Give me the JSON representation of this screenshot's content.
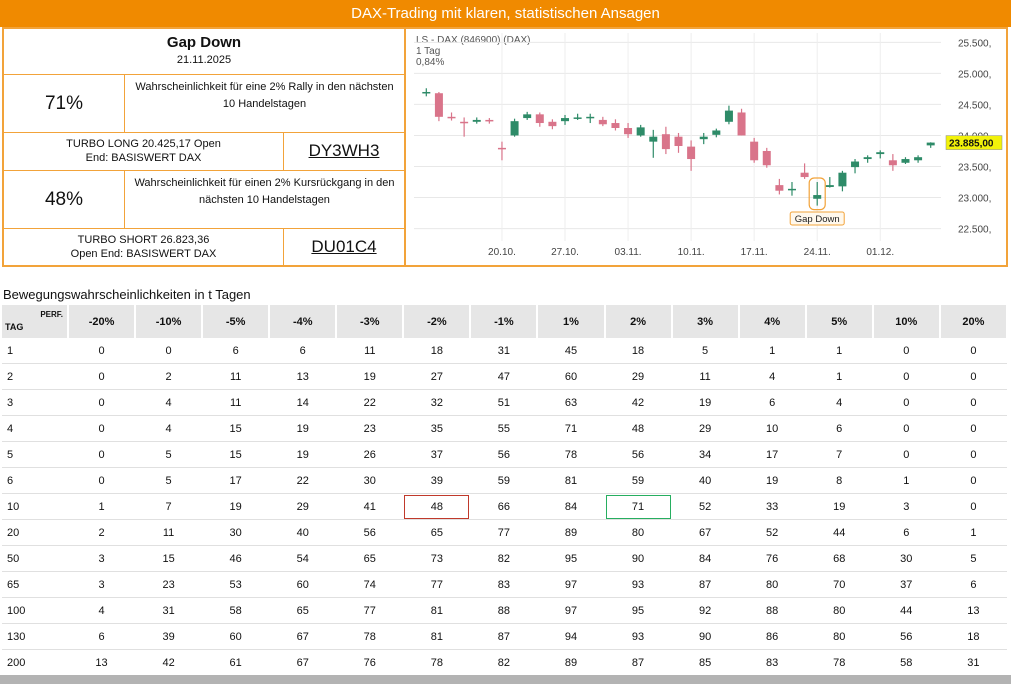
{
  "banner": {
    "title": "DAX-Trading mit klaren, statistischen Ansagen"
  },
  "setup": {
    "name": "Gap Down",
    "date": "21.11.2025",
    "long_pct": "71%",
    "long_text": "Wahrscheinlichkeit für eine 2% Rally in den nächsten 10 Handelstagen",
    "long_product": "TURBO LONG 20.425,17 Open End: BASISWERT DAX",
    "long_code": "DY3WH3",
    "short_pct": "48%",
    "short_text": "Wahrscheinlichkeit für einen 2% Kursrückgang in den nächsten 10 Handelstagen",
    "short_product": "TURBO SHORT 26.823,36 Open End: BASISWERT DAX",
    "short_code": "DU01C4"
  },
  "chart_data": {
    "type": "candlestick",
    "title": "LS - DAX (846900) (DAX)",
    "interval": "1 Tag",
    "change": "0,84%",
    "last_price_label": "23.885,00",
    "annotation": "Gap Down",
    "y_ticks": [
      "25.500,",
      "25.000,",
      "24.500,",
      "24.000,",
      "23.500,",
      "23.000,",
      "22.500,"
    ],
    "y_tick_values": [
      25500,
      25000,
      24500,
      24000,
      23500,
      23000,
      22500
    ],
    "ylim": [
      22300,
      25650
    ],
    "x_ticks": [
      "20.10.",
      "27.10.",
      "03.11.",
      "10.11.",
      "17.11.",
      "24.11.",
      "01.12."
    ],
    "x_tick_index": [
      6,
      11,
      16,
      21,
      26,
      31,
      36
    ],
    "candles": [
      {
        "o": 24700,
        "h": 24760,
        "l": 24630,
        "c": 24700
      },
      {
        "o": 24680,
        "h": 24700,
        "l": 24230,
        "c": 24300
      },
      {
        "o": 24300,
        "h": 24370,
        "l": 24240,
        "c": 24290
      },
      {
        "o": 24220,
        "h": 24290,
        "l": 23980,
        "c": 24200
      },
      {
        "o": 24220,
        "h": 24290,
        "l": 24190,
        "c": 24250
      },
      {
        "o": 24250,
        "h": 24280,
        "l": 24190,
        "c": 24230
      },
      {
        "o": 23800,
        "h": 23900,
        "l": 23600,
        "c": 23780
      },
      {
        "o": 24000,
        "h": 24270,
        "l": 23980,
        "c": 24230
      },
      {
        "o": 24280,
        "h": 24380,
        "l": 24250,
        "c": 24340
      },
      {
        "o": 24340,
        "h": 24370,
        "l": 24140,
        "c": 24200
      },
      {
        "o": 24220,
        "h": 24260,
        "l": 24100,
        "c": 24150
      },
      {
        "o": 24230,
        "h": 24330,
        "l": 24170,
        "c": 24280
      },
      {
        "o": 24290,
        "h": 24350,
        "l": 24250,
        "c": 24290
      },
      {
        "o": 24290,
        "h": 24350,
        "l": 24200,
        "c": 24300
      },
      {
        "o": 24250,
        "h": 24300,
        "l": 24150,
        "c": 24180
      },
      {
        "o": 24200,
        "h": 24260,
        "l": 24080,
        "c": 24120
      },
      {
        "o": 24120,
        "h": 24200,
        "l": 23960,
        "c": 24020
      },
      {
        "o": 24000,
        "h": 24170,
        "l": 23980,
        "c": 24130
      },
      {
        "o": 23900,
        "h": 24090,
        "l": 23640,
        "c": 23980
      },
      {
        "o": 24020,
        "h": 24140,
        "l": 23700,
        "c": 23780
      },
      {
        "o": 23980,
        "h": 24040,
        "l": 23720,
        "c": 23830
      },
      {
        "o": 23820,
        "h": 23920,
        "l": 23430,
        "c": 23620
      },
      {
        "o": 23940,
        "h": 24040,
        "l": 23860,
        "c": 23980
      },
      {
        "o": 24010,
        "h": 24110,
        "l": 23970,
        "c": 24080
      },
      {
        "o": 24220,
        "h": 24480,
        "l": 24180,
        "c": 24400
      },
      {
        "o": 24370,
        "h": 24430,
        "l": 24000,
        "c": 24000
      },
      {
        "o": 23900,
        "h": 23960,
        "l": 23560,
        "c": 23600
      },
      {
        "o": 23750,
        "h": 23800,
        "l": 23480,
        "c": 23520
      },
      {
        "o": 23200,
        "h": 23300,
        "l": 23050,
        "c": 23110
      },
      {
        "o": 23140,
        "h": 23250,
        "l": 23030,
        "c": 23140
      },
      {
        "o": 23400,
        "h": 23550,
        "l": 23300,
        "c": 23330
      },
      {
        "o": 22980,
        "h": 23250,
        "l": 22870,
        "c": 23040
      },
      {
        "o": 23170,
        "h": 23330,
        "l": 23160,
        "c": 23200
      },
      {
        "o": 23180,
        "h": 23430,
        "l": 23100,
        "c": 23400
      },
      {
        "o": 23490,
        "h": 23620,
        "l": 23390,
        "c": 23580
      },
      {
        "o": 23620,
        "h": 23680,
        "l": 23560,
        "c": 23650
      },
      {
        "o": 23700,
        "h": 23760,
        "l": 23630,
        "c": 23730
      },
      {
        "o": 23600,
        "h": 23700,
        "l": 23430,
        "c": 23520
      },
      {
        "o": 23560,
        "h": 23650,
        "l": 23540,
        "c": 23620
      },
      {
        "o": 23600,
        "h": 23680,
        "l": 23560,
        "c": 23650
      },
      {
        "o": 23840,
        "h": 23890,
        "l": 23800,
        "c": 23885
      }
    ]
  },
  "table": {
    "title": "Bewegungswahrscheinlichkeiten in t Tagen",
    "corner_tag": "TAG",
    "corner_perf": "PERF.",
    "columns": [
      "-20%",
      "-10%",
      "-5%",
      "-4%",
      "-3%",
      "-2%",
      "-1%",
      "1%",
      "2%",
      "3%",
      "4%",
      "5%",
      "10%",
      "20%"
    ],
    "rows": [
      {
        "tag": "1",
        "values": [
          "0",
          "0",
          "6",
          "6",
          "11",
          "18",
          "31",
          "45",
          "18",
          "5",
          "1",
          "1",
          "0",
          "0"
        ]
      },
      {
        "tag": "2",
        "values": [
          "0",
          "2",
          "11",
          "13",
          "19",
          "27",
          "47",
          "60",
          "29",
          "11",
          "4",
          "1",
          "0",
          "0"
        ]
      },
      {
        "tag": "3",
        "values": [
          "0",
          "4",
          "11",
          "14",
          "22",
          "32",
          "51",
          "63",
          "42",
          "19",
          "6",
          "4",
          "0",
          "0"
        ]
      },
      {
        "tag": "4",
        "values": [
          "0",
          "4",
          "15",
          "19",
          "23",
          "35",
          "55",
          "71",
          "48",
          "29",
          "10",
          "6",
          "0",
          "0"
        ]
      },
      {
        "tag": "5",
        "values": [
          "0",
          "5",
          "15",
          "19",
          "26",
          "37",
          "56",
          "78",
          "56",
          "34",
          "17",
          "7",
          "0",
          "0"
        ]
      },
      {
        "tag": "6",
        "values": [
          "0",
          "5",
          "17",
          "22",
          "30",
          "39",
          "59",
          "81",
          "59",
          "40",
          "19",
          "8",
          "1",
          "0"
        ]
      },
      {
        "tag": "10",
        "values": [
          "1",
          "7",
          "19",
          "29",
          "41",
          "48",
          "66",
          "84",
          "71",
          "52",
          "33",
          "19",
          "3",
          "0"
        ]
      },
      {
        "tag": "20",
        "values": [
          "2",
          "11",
          "30",
          "40",
          "56",
          "65",
          "77",
          "89",
          "80",
          "67",
          "52",
          "44",
          "6",
          "1"
        ]
      },
      {
        "tag": "50",
        "values": [
          "3",
          "15",
          "46",
          "54",
          "65",
          "73",
          "82",
          "95",
          "90",
          "84",
          "76",
          "68",
          "30",
          "5"
        ]
      },
      {
        "tag": "65",
        "values": [
          "3",
          "23",
          "53",
          "60",
          "74",
          "77",
          "83",
          "97",
          "93",
          "87",
          "80",
          "70",
          "37",
          "6"
        ]
      },
      {
        "tag": "100",
        "values": [
          "4",
          "31",
          "58",
          "65",
          "77",
          "81",
          "88",
          "97",
          "95",
          "92",
          "88",
          "80",
          "44",
          "13"
        ]
      },
      {
        "tag": "130",
        "values": [
          "6",
          "39",
          "60",
          "67",
          "78",
          "81",
          "87",
          "94",
          "93",
          "90",
          "86",
          "80",
          "56",
          "18"
        ]
      },
      {
        "tag": "200",
        "values": [
          "13",
          "42",
          "61",
          "67",
          "76",
          "78",
          "82",
          "89",
          "87",
          "85",
          "83",
          "78",
          "58",
          "31"
        ]
      }
    ]
  },
  "colors": {
    "accent": "#f08a00",
    "up": "#2e8b68",
    "down": "#d9748a",
    "price_tag": "#f2f20a"
  }
}
